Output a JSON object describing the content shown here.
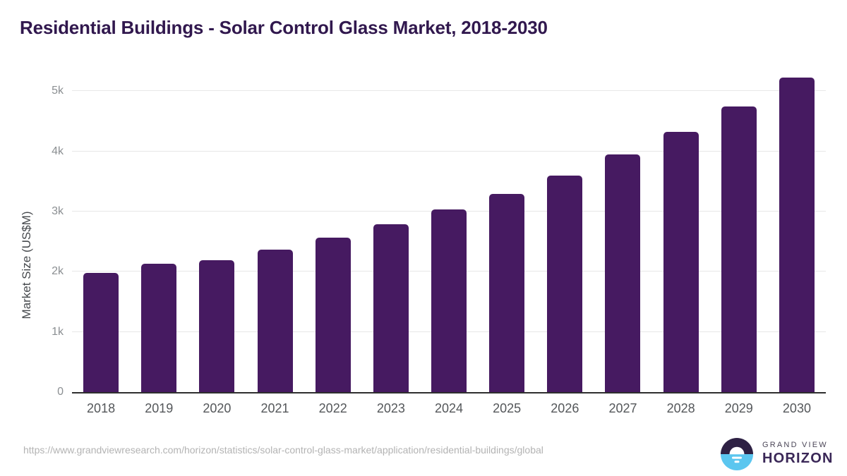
{
  "chart_data": {
    "type": "bar",
    "title": "Residential Buildings - Solar Control Glass Market, 2018-2030",
    "xlabel": "",
    "ylabel": "Market Size (US$M)",
    "categories": [
      "2018",
      "2019",
      "2020",
      "2021",
      "2022",
      "2023",
      "2024",
      "2025",
      "2026",
      "2027",
      "2028",
      "2029",
      "2030"
    ],
    "values": [
      1985,
      2135,
      2190,
      2365,
      2565,
      2790,
      3030,
      3290,
      3595,
      3950,
      4320,
      4750,
      5230
    ],
    "ylim": [
      0,
      5310
    ],
    "yticks": [
      {
        "value": 0,
        "label": "0"
      },
      {
        "value": 1000,
        "label": "1k"
      },
      {
        "value": 2000,
        "label": "2k"
      },
      {
        "value": 3000,
        "label": "3k"
      },
      {
        "value": 4000,
        "label": "4k"
      },
      {
        "value": 5000,
        "label": "5k"
      }
    ],
    "bar_color": "#461a61",
    "grid": true,
    "legend": false
  },
  "colors": {
    "title_text": "#31184e",
    "axis_label": "#46494d",
    "tick_label": "#8b8f92",
    "x_tick_label": "#54575a",
    "gridline": "#e7e7e7",
    "baseline": "#2f2f2f",
    "url_text": "#b3b3b3",
    "logo_dark": "#2e2144",
    "logo_blue": "#5bc6ef"
  },
  "footer": {
    "source_url": "https://www.grandviewresearch.com/horizon/statistics/solar-control-glass-market/application/residential-buildings/global",
    "logo": {
      "brand_top": "GRAND VIEW",
      "brand_bottom": "HORIZON"
    }
  }
}
